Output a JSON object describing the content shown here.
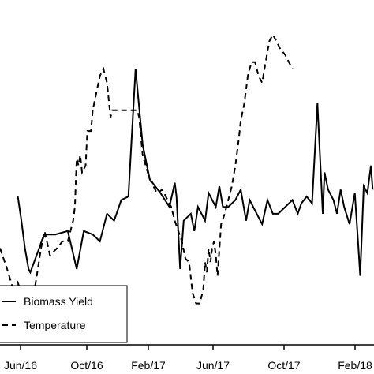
{
  "chart_data": {
    "type": "line",
    "title": "",
    "xlabel": "",
    "ylabel": "",
    "grid": false,
    "legend_position": "bottom-left",
    "x_ticks": [
      "Jun/16",
      "Oct/16",
      "Feb/17",
      "Jun/17",
      "Oct/17",
      "Feb/18"
    ],
    "series": [
      {
        "name": "Biomass Yield",
        "style": "solid",
        "color": "#000000",
        "points": [
          [
            0.05,
            0.43
          ],
          [
            0.06,
            0.36
          ],
          [
            0.07,
            0.28
          ],
          [
            0.08,
            0.22
          ],
          [
            0.085,
            0.21
          ],
          [
            0.11,
            0.28
          ],
          [
            0.12,
            0.31
          ],
          [
            0.13,
            0.32
          ],
          [
            0.155,
            0.32
          ],
          [
            0.19,
            0.33
          ],
          [
            0.215,
            0.22
          ],
          [
            0.235,
            0.33
          ],
          [
            0.26,
            0.32
          ],
          [
            0.28,
            0.3
          ],
          [
            0.3,
            0.38
          ],
          [
            0.32,
            0.36
          ],
          [
            0.34,
            0.42
          ],
          [
            0.36,
            0.43
          ],
          [
            0.38,
            0.8
          ],
          [
            0.4,
            0.58
          ],
          [
            0.42,
            0.48
          ],
          [
            0.45,
            0.44
          ],
          [
            0.475,
            0.4
          ],
          [
            0.49,
            0.47
          ],
          [
            0.495,
            0.43
          ],
          [
            0.505,
            0.22
          ],
          [
            0.515,
            0.36
          ],
          [
            0.535,
            0.38
          ],
          [
            0.545,
            0.33
          ],
          [
            0.555,
            0.4
          ],
          [
            0.565,
            0.38
          ],
          [
            0.575,
            0.36
          ],
          [
            0.585,
            0.44
          ],
          [
            0.595,
            0.42
          ],
          [
            0.605,
            0.4
          ],
          [
            0.615,
            0.46
          ],
          [
            0.625,
            0.4
          ],
          [
            0.64,
            0.4
          ],
          [
            0.66,
            0.42
          ],
          [
            0.675,
            0.45
          ],
          [
            0.69,
            0.36
          ],
          [
            0.7,
            0.42
          ],
          [
            0.72,
            0.38
          ],
          [
            0.735,
            0.35
          ],
          [
            0.75,
            0.42
          ],
          [
            0.765,
            0.38
          ],
          [
            0.78,
            0.38
          ],
          [
            0.8,
            0.4
          ],
          [
            0.82,
            0.42
          ],
          [
            0.835,
            0.38
          ],
          [
            0.845,
            0.41
          ],
          [
            0.86,
            0.43
          ],
          [
            0.875,
            0.41
          ],
          [
            0.89,
            0.7
          ],
          [
            0.905,
            0.38
          ],
          [
            0.91,
            0.5
          ],
          [
            0.92,
            0.45
          ],
          [
            0.935,
            0.42
          ],
          [
            0.945,
            0.38
          ],
          [
            0.955,
            0.45
          ],
          [
            0.965,
            0.4
          ],
          [
            0.98,
            0.35
          ],
          [
            0.995,
            0.44
          ],
          [
            1.005,
            0.28
          ],
          [
            1.01,
            0.2
          ],
          [
            1.02,
            0.46
          ],
          [
            1.03,
            0.44
          ],
          [
            1.04,
            0.52
          ],
          [
            1.045,
            0.45
          ]
        ]
      },
      {
        "name": "Temperature",
        "style": "dashed",
        "color": "#000000",
        "points": [
          [
            0.0,
            0.28
          ],
          [
            0.02,
            0.22
          ],
          [
            0.04,
            0.15
          ],
          [
            0.05,
            0.18
          ],
          [
            0.06,
            0.15
          ],
          [
            0.075,
            0.1
          ],
          [
            0.09,
            0.12
          ],
          [
            0.1,
            0.18
          ],
          [
            0.115,
            0.28
          ],
          [
            0.125,
            0.33
          ],
          [
            0.14,
            0.26
          ],
          [
            0.16,
            0.28
          ],
          [
            0.175,
            0.3
          ],
          [
            0.19,
            0.3
          ],
          [
            0.205,
            0.36
          ],
          [
            0.21,
            0.4
          ],
          [
            0.215,
            0.54
          ],
          [
            0.22,
            0.52
          ],
          [
            0.225,
            0.55
          ],
          [
            0.23,
            0.5
          ],
          [
            0.24,
            0.52
          ],
          [
            0.245,
            0.62
          ],
          [
            0.255,
            0.62
          ],
          [
            0.26,
            0.68
          ],
          [
            0.28,
            0.78
          ],
          [
            0.29,
            0.8
          ],
          [
            0.3,
            0.76
          ],
          [
            0.31,
            0.66
          ],
          [
            0.315,
            0.68
          ],
          [
            0.33,
            0.68
          ],
          [
            0.35,
            0.68
          ],
          [
            0.37,
            0.68
          ],
          [
            0.385,
            0.68
          ],
          [
            0.39,
            0.66
          ],
          [
            0.4,
            0.55
          ],
          [
            0.42,
            0.48
          ],
          [
            0.44,
            0.44
          ],
          [
            0.455,
            0.45
          ],
          [
            0.47,
            0.42
          ],
          [
            0.48,
            0.4
          ],
          [
            0.49,
            0.36
          ],
          [
            0.5,
            0.33
          ],
          [
            0.51,
            0.3
          ],
          [
            0.52,
            0.25
          ],
          [
            0.53,
            0.24
          ],
          [
            0.54,
            0.15
          ],
          [
            0.55,
            0.12
          ],
          [
            0.56,
            0.12
          ],
          [
            0.57,
            0.16
          ],
          [
            0.575,
            0.24
          ],
          [
            0.58,
            0.21
          ],
          [
            0.585,
            0.28
          ],
          [
            0.59,
            0.24
          ],
          [
            0.595,
            0.28
          ],
          [
            0.6,
            0.3
          ],
          [
            0.605,
            0.26
          ],
          [
            0.61,
            0.2
          ],
          [
            0.62,
            0.35
          ],
          [
            0.63,
            0.38
          ],
          [
            0.64,
            0.42
          ],
          [
            0.65,
            0.46
          ],
          [
            0.66,
            0.52
          ],
          [
            0.67,
            0.6
          ],
          [
            0.675,
            0.65
          ],
          [
            0.685,
            0.7
          ],
          [
            0.695,
            0.78
          ],
          [
            0.705,
            0.82
          ],
          [
            0.715,
            0.82
          ],
          [
            0.725,
            0.78
          ],
          [
            0.735,
            0.76
          ],
          [
            0.745,
            0.82
          ],
          [
            0.755,
            0.88
          ],
          [
            0.765,
            0.9
          ],
          [
            0.775,
            0.88
          ],
          [
            0.785,
            0.86
          ],
          [
            0.8,
            0.84
          ],
          [
            0.81,
            0.82
          ],
          [
            0.82,
            0.8
          ]
        ]
      }
    ]
  }
}
